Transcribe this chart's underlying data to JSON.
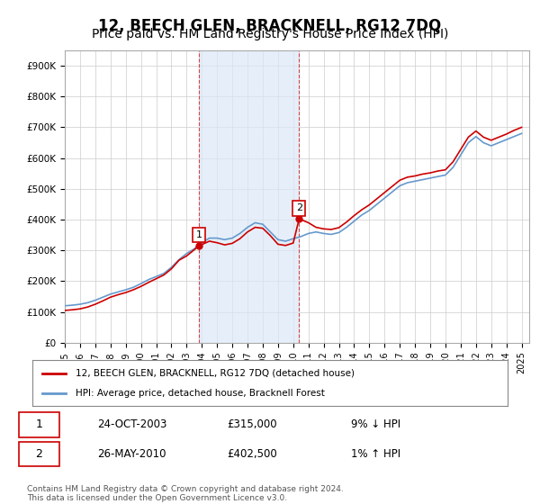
{
  "title": "12, BEECH GLEN, BRACKNELL, RG12 7DQ",
  "subtitle": "Price paid vs. HM Land Registry's House Price Index (HPI)",
  "title_fontsize": 12,
  "subtitle_fontsize": 10,
  "ylabel_ticks": [
    "£0",
    "£100K",
    "£200K",
    "£300K",
    "£400K",
    "£500K",
    "£600K",
    "£700K",
    "£800K",
    "£900K"
  ],
  "ytick_values": [
    0,
    100000,
    200000,
    300000,
    400000,
    500000,
    600000,
    700000,
    800000,
    900000
  ],
  "ylim": [
    0,
    950000
  ],
  "xlim_start": 1995.0,
  "xlim_end": 2025.5,
  "sale1_year": 2003.81,
  "sale1_price": 315000,
  "sale1_label": "1",
  "sale2_year": 2010.39,
  "sale2_price": 402500,
  "sale2_label": "2",
  "shade_color": "#dce9f7",
  "shade_alpha": 0.7,
  "line_color_property": "#cc0000",
  "line_color_hpi": "#6699cc",
  "marker_border_color": "#cc0000",
  "legend_label_property": "12, BEECH GLEN, BRACKNELL, RG12 7DQ (detached house)",
  "legend_label_hpi": "HPI: Average price, detached house, Bracknell Forest",
  "table_row1": [
    "1",
    "24-OCT-2003",
    "£315,000",
    "9% ↓ HPI"
  ],
  "table_row2": [
    "2",
    "26-MAY-2010",
    "£402,500",
    "1% ↑ HPI"
  ],
  "footnote": "Contains HM Land Registry data © Crown copyright and database right 2024.\nThis data is licensed under the Open Government Licence v3.0.",
  "background_color": "#ffffff",
  "grid_color": "#cccccc"
}
